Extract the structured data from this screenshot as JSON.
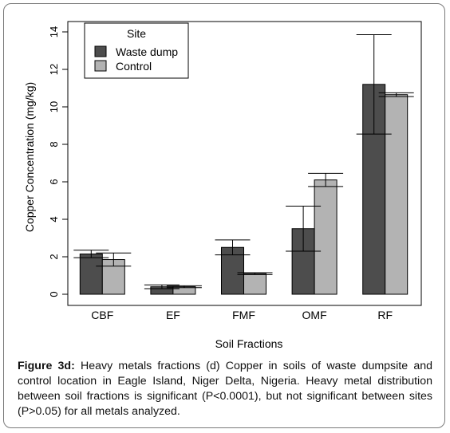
{
  "chart_data": {
    "type": "bar",
    "xlabel": "Soil Fractions",
    "ylabel": "Copper Concentration (mg/kg)",
    "categories": [
      "CBF",
      "EF",
      "FMF",
      "OMF",
      "RF"
    ],
    "ylim": [
      0,
      14
    ],
    "yticks": [
      0,
      2,
      4,
      6,
      8,
      10,
      12,
      14
    ],
    "legend": {
      "title": "Site",
      "position": "top-left"
    },
    "series": [
      {
        "name": "Waste dump",
        "color": "#4d4d4d",
        "values": [
          2.15,
          0.4,
          2.5,
          3.5,
          11.2
        ],
        "error": [
          0.2,
          0.1,
          0.4,
          1.2,
          2.65
        ]
      },
      {
        "name": "Control",
        "color": "#b3b3b3",
        "values": [
          1.85,
          0.4,
          1.1,
          6.1,
          10.65
        ],
        "error": [
          0.35,
          0.05,
          0.05,
          0.35,
          0.1
        ]
      }
    ]
  },
  "caption": {
    "label": "Figure 3d:",
    "text": "Heavy metals fractions (d) Copper in soils of waste dumpsite and control location in Eagle Island, Niger Delta, Nigeria. Heavy metal distribution between soil fractions is significant (P<0.0001), but not significant between sites (P>0.05) for all metals analyzed."
  }
}
